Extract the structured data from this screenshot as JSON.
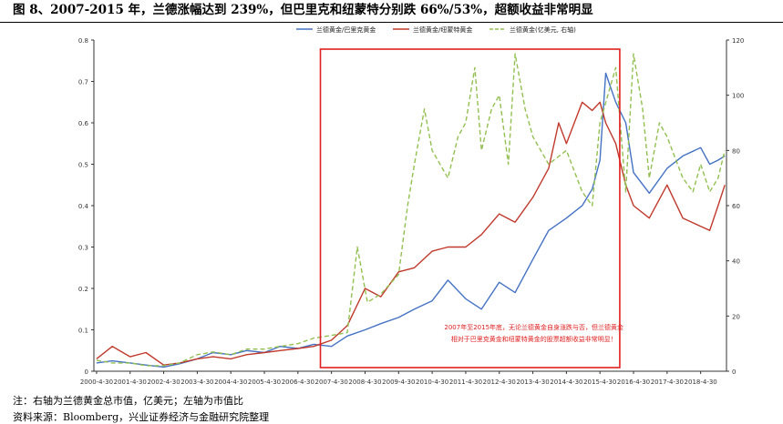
{
  "figure": {
    "title": "图 8、2007-2015 年，兰德涨幅达到 239%，但巴里克和纽蒙特分别跌 66%/53%，超额收益非常明显",
    "note": "注：右轴为兰德黄金总市值，亿美元；左轴为市值比",
    "source": "资料来源：Bloomberg，兴业证券经济与金融研究院整理"
  },
  "chart_data": {
    "type": "line",
    "title": "",
    "xlabel": "",
    "ylabel": "",
    "y2label": "",
    "x_tick_labels": [
      "2000-4-30",
      "2001-4-30",
      "2002-4-30",
      "2003-4-30",
      "2004-4-30",
      "2005-4-30",
      "2006-4-30",
      "2007-4-30",
      "2008-4-30",
      "2009-4-30",
      "2010-4-30",
      "2011-4-30",
      "2012-4-30",
      "2013-4-30",
      "2014-4-30",
      "2015-4-30",
      "2016-4-30",
      "2017-4-30",
      "2018-4-30"
    ],
    "xlim": [
      2000.25,
      2019.1
    ],
    "ylim": [
      0,
      0.8
    ],
    "y_ticks": [
      "0",
      "0.1",
      "0.2",
      "0.3",
      "0.4",
      "0.5",
      "0.6",
      "0.7",
      "0.8"
    ],
    "y2lim": [
      0,
      120
    ],
    "y2_ticks": [
      "0",
      "20",
      "40",
      "60",
      "80",
      "100",
      "120"
    ],
    "grid": false,
    "legend_position": "top-center",
    "series": [
      {
        "name": "兰德黄金/巴里克黄金",
        "axis": "left",
        "color": "#4472c4",
        "style": "solid",
        "x": [
          2000.33,
          2000.8,
          2001.33,
          2001.8,
          2002.33,
          2002.8,
          2003.33,
          2003.8,
          2004.33,
          2004.8,
          2005.33,
          2005.8,
          2006.33,
          2006.8,
          2007.33,
          2007.8,
          2008.33,
          2008.8,
          2009.33,
          2009.8,
          2010.33,
          2010.8,
          2011.33,
          2011.8,
          2012.33,
          2012.8,
          2013.33,
          2013.8,
          2014.33,
          2014.8,
          2015.1,
          2015.33,
          2015.5,
          2015.8,
          2016.1,
          2016.33,
          2016.8,
          2017.33,
          2017.8,
          2018.33,
          2018.6,
          2018.85,
          2019.05
        ],
        "y": [
          0.02,
          0.025,
          0.02,
          0.015,
          0.01,
          0.018,
          0.03,
          0.045,
          0.04,
          0.05,
          0.045,
          0.06,
          0.055,
          0.065,
          0.06,
          0.085,
          0.1,
          0.115,
          0.13,
          0.15,
          0.17,
          0.22,
          0.175,
          0.15,
          0.215,
          0.19,
          0.27,
          0.34,
          0.37,
          0.4,
          0.44,
          0.51,
          0.72,
          0.65,
          0.6,
          0.48,
          0.43,
          0.49,
          0.52,
          0.54,
          0.5,
          0.51,
          0.52
        ]
      },
      {
        "name": "兰德黄金/纽蒙特黄金",
        "axis": "left",
        "color": "#c0392b",
        "style": "solid",
        "x": [
          2000.33,
          2000.8,
          2001.33,
          2001.8,
          2002.33,
          2002.8,
          2003.33,
          2003.8,
          2004.33,
          2004.8,
          2005.33,
          2005.8,
          2006.33,
          2006.8,
          2007.33,
          2007.8,
          2008.33,
          2008.8,
          2009.33,
          2009.8,
          2010.33,
          2010.8,
          2011.33,
          2011.8,
          2012.33,
          2012.8,
          2013.33,
          2013.8,
          2014.1,
          2014.33,
          2014.8,
          2015.1,
          2015.33,
          2015.5,
          2015.8,
          2016.1,
          2016.33,
          2016.8,
          2017.33,
          2017.8,
          2018.33,
          2018.6,
          2018.85,
          2019.05
        ],
        "y": [
          0.03,
          0.06,
          0.035,
          0.045,
          0.015,
          0.02,
          0.03,
          0.035,
          0.03,
          0.04,
          0.045,
          0.05,
          0.055,
          0.06,
          0.075,
          0.11,
          0.2,
          0.18,
          0.24,
          0.25,
          0.29,
          0.3,
          0.3,
          0.33,
          0.38,
          0.36,
          0.42,
          0.49,
          0.6,
          0.55,
          0.65,
          0.63,
          0.65,
          0.6,
          0.55,
          0.45,
          0.4,
          0.37,
          0.45,
          0.37,
          0.35,
          0.34,
          0.4,
          0.45
        ]
      },
      {
        "name": "兰德黄金(亿美元, 右轴)",
        "axis": "right",
        "color": "#92c050",
        "style": "dashed",
        "x": [
          2000.33,
          2000.8,
          2001.33,
          2001.8,
          2002.33,
          2002.8,
          2003.33,
          2003.8,
          2004.33,
          2004.8,
          2005.33,
          2005.8,
          2006.33,
          2006.8,
          2007.33,
          2007.8,
          2008.1,
          2008.4,
          2008.8,
          2009.33,
          2009.6,
          2009.8,
          2010.1,
          2010.33,
          2010.8,
          2011.1,
          2011.33,
          2011.6,
          2011.8,
          2012.1,
          2012.33,
          2012.6,
          2012.8,
          2013.1,
          2013.33,
          2013.8,
          2014.33,
          2014.8,
          2015.1,
          2015.33,
          2015.8,
          2016.1,
          2016.33,
          2016.6,
          2016.8,
          2017.1,
          2017.33,
          2017.8,
          2018.1,
          2018.33,
          2018.6,
          2018.85,
          2019.05
        ],
        "y": [
          4,
          3,
          3,
          2,
          2,
          3,
          6,
          7,
          6,
          8,
          8,
          9,
          10,
          12,
          13,
          14,
          45,
          25,
          28,
          35,
          60,
          75,
          95,
          80,
          70,
          85,
          90,
          110,
          80,
          95,
          100,
          75,
          115,
          95,
          85,
          75,
          80,
          65,
          60,
          90,
          110,
          65,
          115,
          95,
          70,
          90,
          85,
          70,
          65,
          75,
          65,
          70,
          80
        ]
      }
    ],
    "annotation": {
      "text_line1": "2007年至2015年底，无论兰德黄金自身涨跌与否，但兰德黄金",
      "text_line2": "相对于巴里克黄金和纽蒙特黄金的股票超额收益非常明显！",
      "color": "#e02020",
      "highlight_x_range": [
        2007.0,
        2015.92
      ]
    }
  }
}
